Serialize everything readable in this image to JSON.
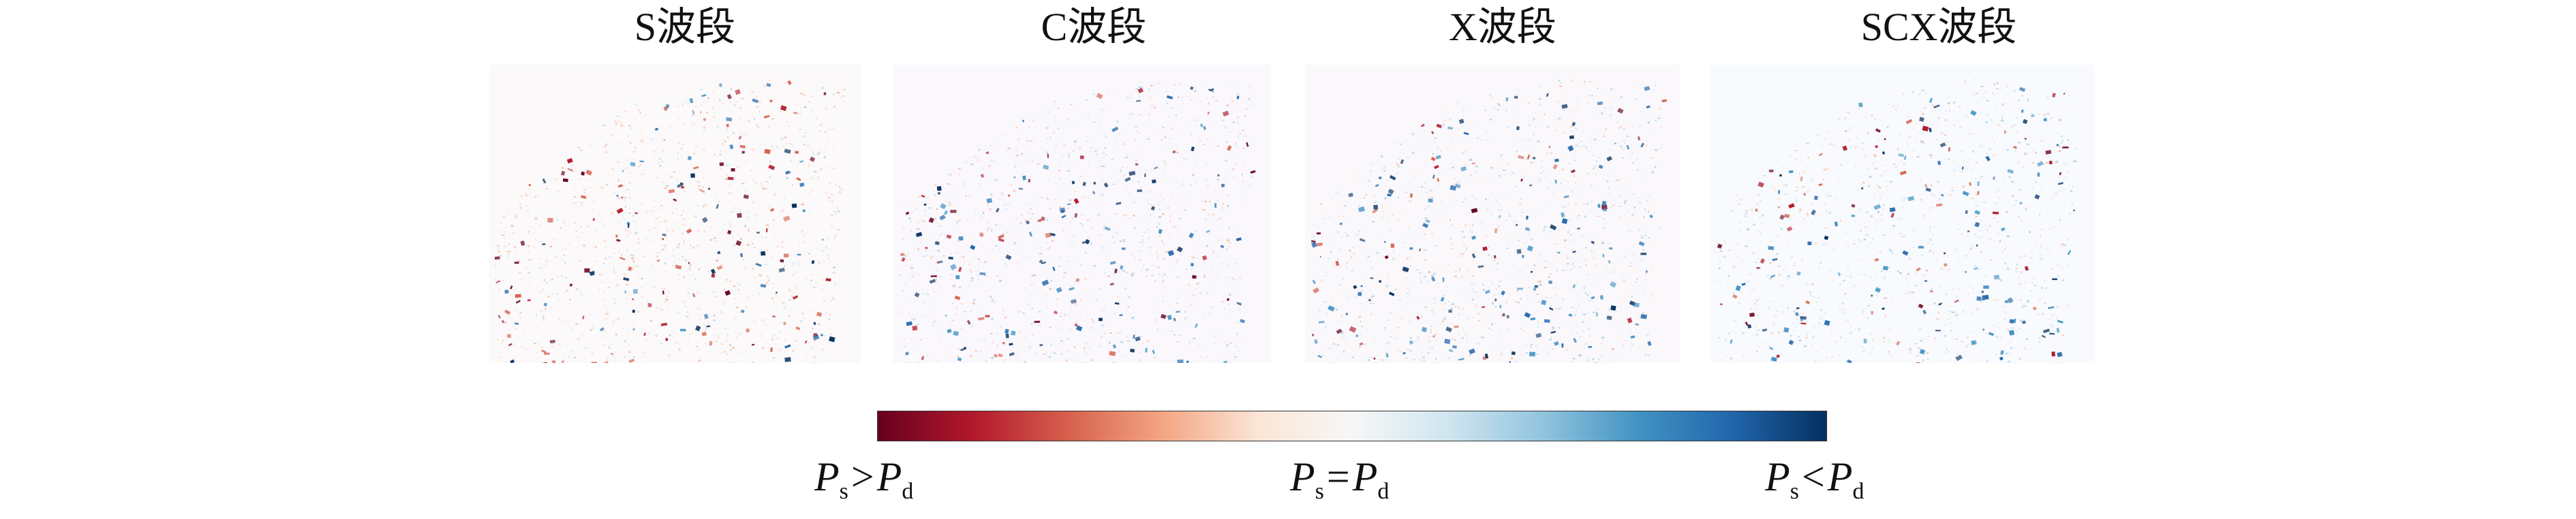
{
  "panels": [
    {
      "title": "S波段",
      "seed": 11,
      "blue_bias": 0.35,
      "red_bias": 0.65,
      "bg": "#fbf9f9"
    },
    {
      "title": "C波段",
      "seed": 23,
      "blue_bias": 0.55,
      "red_bias": 0.45,
      "bg": "#faf8fc"
    },
    {
      "title": "X波段",
      "seed": 37,
      "blue_bias": 0.75,
      "red_bias": 0.25,
      "bg": "#faf8fb"
    },
    {
      "title": "SCX波段",
      "seed": 53,
      "blue_bias": 0.6,
      "red_bias": 0.4,
      "bg": "#f8fafd"
    }
  ],
  "colorbar": {
    "stops": [
      "#67001f",
      "#b2182b",
      "#d6604d",
      "#f4a582",
      "#fbe5d6",
      "#f7f7f7",
      "#d1e5f0",
      "#92c5de",
      "#4393c3",
      "#2166ac",
      "#053061"
    ],
    "labels": {
      "left": {
        "a": "P",
        "a_sub": "s",
        "op": ">",
        "b": "P",
        "b_sub": "d"
      },
      "center": {
        "a": "P",
        "a_sub": "s",
        "op": "=",
        "b": "P",
        "b_sub": "d"
      },
      "right": {
        "a": "P",
        "a_sub": "s",
        "op": "<",
        "b": "P",
        "b_sub": "d"
      }
    }
  }
}
